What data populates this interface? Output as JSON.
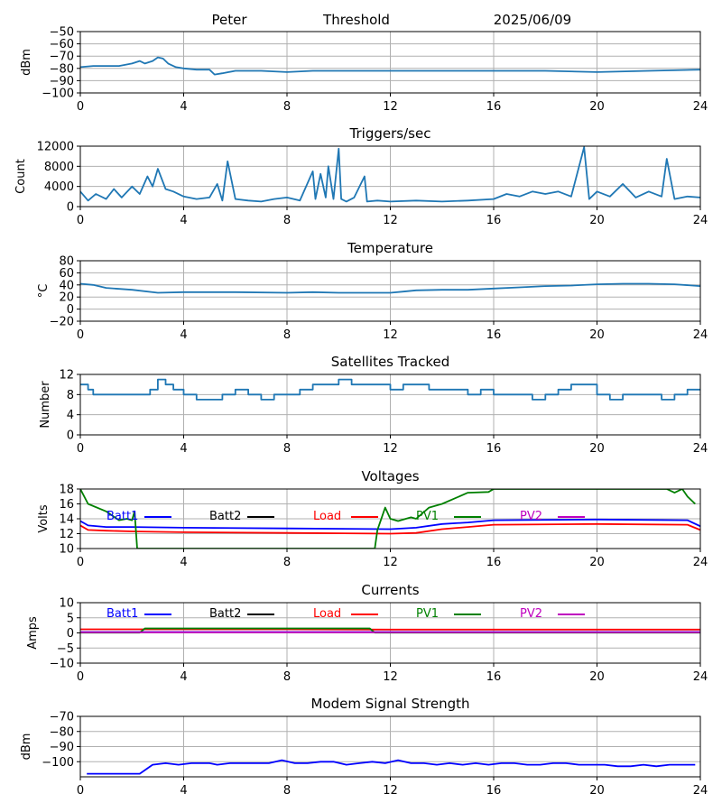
{
  "header": {
    "station": "Peter",
    "mode": "Threshold",
    "date": "2025/06/09"
  },
  "chart_data": [
    {
      "id": "threshold",
      "type": "line",
      "title": "",
      "xlabel": "",
      "ylabel": "dBm",
      "xlim": [
        0,
        24
      ],
      "ylim": [
        -100,
        -50
      ],
      "xticks": [
        0,
        4,
        8,
        12,
        16,
        20,
        24
      ],
      "yticks": [
        -100,
        -90,
        -80,
        -70,
        -60,
        -50
      ],
      "grid": true,
      "series": [
        {
          "color": "#1f77b4",
          "x": [
            0,
            0.5,
            1,
            1.5,
            2,
            2.3,
            2.5,
            2.8,
            3.0,
            3.2,
            3.4,
            3.7,
            4,
            4.5,
            5,
            5.2,
            5.5,
            6,
            7,
            8,
            9,
            10,
            12,
            14,
            16,
            18,
            20,
            22,
            24
          ],
          "y": [
            -79,
            -78,
            -78,
            -78,
            -76,
            -74,
            -76,
            -74,
            -71,
            -72,
            -76,
            -79,
            -80,
            -81,
            -81,
            -85,
            -84,
            -82,
            -82,
            -83,
            -82,
            -82,
            -82,
            -82,
            -82,
            -82,
            -83,
            -82,
            -81
          ]
        }
      ]
    },
    {
      "id": "triggers",
      "type": "line",
      "title": "Triggers/sec",
      "xlabel": "",
      "ylabel": "Count",
      "xlim": [
        0,
        24
      ],
      "ylim": [
        0,
        12000
      ],
      "xticks": [
        0,
        4,
        8,
        12,
        16,
        20,
        24
      ],
      "yticks": [
        0,
        4000,
        8000,
        12000
      ],
      "grid": true,
      "series": [
        {
          "color": "#1f77b4",
          "x": [
            0,
            0.3,
            0.6,
            1.0,
            1.3,
            1.6,
            2.0,
            2.3,
            2.6,
            2.8,
            3.0,
            3.3,
            3.6,
            4.0,
            4.5,
            5.0,
            5.3,
            5.5,
            5.7,
            6.0,
            6.5,
            7.0,
            7.5,
            8.0,
            8.5,
            9.0,
            9.1,
            9.3,
            9.5,
            9.6,
            9.8,
            10.0,
            10.1,
            10.3,
            10.6,
            11.0,
            11.1,
            11.5,
            12.0,
            13.0,
            14.0,
            15.0,
            16.0,
            16.5,
            17.0,
            17.5,
            18.0,
            18.5,
            19.0,
            19.5,
            19.7,
            20.0,
            20.5,
            21.0,
            21.5,
            22.0,
            22.5,
            22.7,
            23.0,
            23.5,
            24
          ],
          "y": [
            3000,
            1200,
            2500,
            1500,
            3500,
            1800,
            4000,
            2500,
            6000,
            4000,
            7500,
            3500,
            3000,
            2000,
            1500,
            1800,
            4500,
            1200,
            9000,
            1500,
            1200,
            1000,
            1500,
            1800,
            1200,
            7000,
            1500,
            6500,
            1800,
            8000,
            1500,
            11500,
            1500,
            1000,
            1800,
            6000,
            1000,
            1200,
            1000,
            1200,
            1000,
            1200,
            1500,
            2500,
            2000,
            3000,
            2500,
            3000,
            2000,
            11800,
            1500,
            3000,
            2000,
            4500,
            1800,
            3000,
            2000,
            9500,
            1500,
            2000,
            1800
          ]
        }
      ]
    },
    {
      "id": "temperature",
      "type": "line",
      "title": "Temperature",
      "xlabel": "",
      "ylabel": "°C",
      "xlim": [
        0,
        24
      ],
      "ylim": [
        -20,
        80
      ],
      "xticks": [
        0,
        4,
        8,
        12,
        16,
        20,
        24
      ],
      "yticks": [
        -20,
        0,
        20,
        40,
        60,
        80
      ],
      "grid": true,
      "series": [
        {
          "color": "#1f77b4",
          "x": [
            0,
            0.5,
            1,
            2,
            3,
            4,
            6,
            8,
            9,
            10,
            12,
            12.5,
            13,
            14,
            15,
            16,
            17,
            18,
            19,
            20,
            21,
            22,
            23,
            24
          ],
          "y": [
            42,
            40,
            35,
            32,
            27,
            28,
            28,
            27,
            28,
            27,
            27,
            29,
            31,
            32,
            32,
            34,
            36,
            38,
            39,
            41,
            42,
            42,
            41,
            38
          ]
        }
      ]
    },
    {
      "id": "satellites",
      "type": "line",
      "title": "Satellites Tracked",
      "xlabel": "",
      "ylabel": "Number",
      "xlim": [
        0,
        24
      ],
      "ylim": [
        0,
        12
      ],
      "xticks": [
        0,
        4,
        8,
        12,
        16,
        20,
        24
      ],
      "yticks": [
        0,
        4,
        8,
        12
      ],
      "grid": true,
      "series": [
        {
          "color": "#1f77b4",
          "step": true,
          "x": [
            0,
            0.3,
            0.5,
            1,
            1.5,
            2,
            2.7,
            3,
            3.3,
            3.6,
            4,
            4.5,
            5,
            5.5,
            6,
            6.5,
            7,
            7.5,
            8,
            8.5,
            9,
            9.5,
            10,
            10.5,
            11,
            11.5,
            12,
            12.5,
            13,
            13.5,
            14,
            14.5,
            15,
            15.5,
            16,
            16.5,
            17,
            17.5,
            18,
            18.5,
            19,
            19.5,
            20,
            20.5,
            21,
            21.5,
            22,
            22.5,
            23,
            23.5,
            24
          ],
          "y": [
            10,
            9,
            8,
            8,
            8,
            8,
            9,
            11,
            10,
            9,
            8,
            7,
            7,
            8,
            9,
            8,
            7,
            8,
            8,
            9,
            10,
            10,
            11,
            10,
            10,
            10,
            9,
            10,
            10,
            9,
            9,
            9,
            8,
            9,
            8,
            8,
            8,
            7,
            8,
            9,
            10,
            10,
            8,
            7,
            8,
            8,
            8,
            7,
            8,
            9,
            9
          ]
        }
      ]
    },
    {
      "id": "voltages",
      "type": "line",
      "title": "Voltages",
      "xlabel": "",
      "ylabel": "Volts",
      "xlim": [
        0,
        24
      ],
      "ylim": [
        10,
        18
      ],
      "xticks": [
        0,
        4,
        8,
        12,
        16,
        20,
        24
      ],
      "yticks": [
        10,
        12,
        14,
        16,
        18
      ],
      "grid": true,
      "legend": [
        "Batt1",
        "Batt2",
        "Load",
        "PV1",
        "PV2"
      ],
      "series": [
        {
          "name": "Batt1",
          "color": "#0000ff",
          "x": [
            0,
            0.3,
            1,
            2,
            4,
            8,
            12,
            13,
            14,
            15,
            16,
            20,
            23.5,
            24
          ],
          "y": [
            13.7,
            13.1,
            12.9,
            12.9,
            12.8,
            12.7,
            12.6,
            12.8,
            13.3,
            13.5,
            13.8,
            13.9,
            13.8,
            13.0
          ]
        },
        {
          "name": "Batt2",
          "color": "#000000",
          "x": [],
          "y": []
        },
        {
          "name": "Load",
          "color": "#ff0000",
          "x": [
            0,
            0.3,
            1,
            2,
            4,
            8,
            12,
            13,
            14,
            15,
            16,
            20,
            23.5,
            24
          ],
          "y": [
            13.1,
            12.5,
            12.4,
            12.3,
            12.2,
            12.1,
            12.0,
            12.1,
            12.6,
            12.9,
            13.2,
            13.3,
            13.2,
            12.5
          ]
        },
        {
          "name": "PV1",
          "color": "#008000",
          "x": [
            0,
            0.3,
            1,
            1.5,
            1.8,
            2.0,
            2.1,
            2.2,
            11.4,
            11.5,
            11.8,
            12.0,
            12.3,
            12.8,
            13.0,
            13.5,
            14.0,
            15.0,
            15.8,
            16.0,
            16.5,
            22.0,
            22.7,
            23.0,
            23.3,
            23.5,
            23.8
          ],
          "y": [
            18.0,
            16.0,
            15.0,
            13.8,
            14.0,
            13.8,
            15.0,
            10.0,
            10.0,
            12.5,
            15.5,
            14.0,
            13.7,
            14.2,
            14.0,
            15.5,
            16.0,
            17.5,
            17.6,
            18.0,
            18.0,
            18.0,
            18.0,
            17.5,
            18.0,
            17.0,
            16.0
          ]
        },
        {
          "name": "PV2",
          "color": "#bf00bf",
          "x": [],
          "y": []
        }
      ]
    },
    {
      "id": "currents",
      "type": "line",
      "title": "Currents",
      "xlabel": "",
      "ylabel": "Amps",
      "xlim": [
        0,
        24
      ],
      "ylim": [
        -10,
        10
      ],
      "xticks": [
        0,
        4,
        8,
        12,
        16,
        20,
        24
      ],
      "yticks": [
        -10,
        -5,
        0,
        5,
        10
      ],
      "grid": true,
      "legend": [
        "Batt1",
        "Batt2",
        "Load",
        "PV1",
        "PV2"
      ],
      "series": [
        {
          "name": "Batt1",
          "color": "#0000ff",
          "x": [
            0,
            24
          ],
          "y": [
            0.3,
            0.3
          ]
        },
        {
          "name": "Batt2",
          "color": "#000000",
          "x": [],
          "y": []
        },
        {
          "name": "Load",
          "color": "#ff0000",
          "x": [
            0,
            4,
            8,
            12,
            16,
            20,
            24
          ],
          "y": [
            1.2,
            1.2,
            1.2,
            1.1,
            1.1,
            1.1,
            1.1
          ]
        },
        {
          "name": "PV1",
          "color": "#008000",
          "x": [
            0,
            2.3,
            2.5,
            4,
            8,
            11,
            11.2,
            11.4,
            24
          ],
          "y": [
            0.1,
            0.1,
            1.5,
            1.5,
            1.5,
            1.5,
            1.5,
            0.1,
            0.1
          ]
        },
        {
          "name": "PV2",
          "color": "#bf00bf",
          "x": [
            0,
            24
          ],
          "y": [
            0.2,
            0.2
          ]
        }
      ]
    },
    {
      "id": "modem",
      "type": "line",
      "title": "Modem Signal Strength",
      "xlabel": "",
      "ylabel": "dBm",
      "xlim": [
        0,
        24
      ],
      "ylim": [
        -110,
        -70
      ],
      "xticks": [
        0,
        4,
        8,
        12,
        16,
        20,
        24
      ],
      "yticks": [
        -100,
        -90,
        -80,
        -70
      ],
      "grid": true,
      "series": [
        {
          "color": "#0000ff",
          "x": [
            0.25,
            1,
            2,
            2.3,
            2.8,
            3.3,
            3.8,
            4.3,
            5,
            5.3,
            5.8,
            6.5,
            7.3,
            7.8,
            8.3,
            8.8,
            9.3,
            9.8,
            10.3,
            10.8,
            11.3,
            11.8,
            12.3,
            12.8,
            13.3,
            13.8,
            14.3,
            14.8,
            15.3,
            15.8,
            16.3,
            16.8,
            17.3,
            17.8,
            18.3,
            18.8,
            19.3,
            19.8,
            20.3,
            20.8,
            21.3,
            21.8,
            22.3,
            22.8,
            23.3,
            23.8
          ],
          "y": [
            -108,
            -108,
            -108,
            -108,
            -102,
            -101,
            -102,
            -101,
            -101,
            -102,
            -101,
            -101,
            -101,
            -99,
            -101,
            -101,
            -100,
            -100,
            -102,
            -101,
            -100,
            -101,
            -99,
            -101,
            -101,
            -102,
            -101,
            -102,
            -101,
            -102,
            -101,
            -101,
            -102,
            -102,
            -101,
            -101,
            -102,
            -102,
            -102,
            -103,
            -103,
            -102,
            -103,
            -102,
            -102,
            -102
          ]
        }
      ]
    }
  ]
}
